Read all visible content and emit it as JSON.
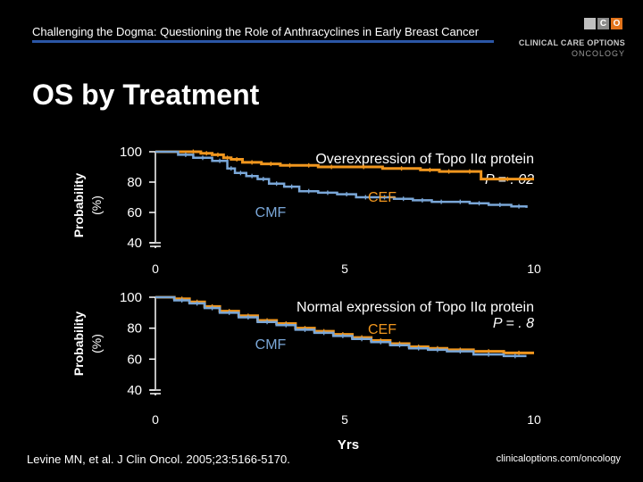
{
  "header": {
    "title": "Challenging the Dogma: Questioning the Role of Anthracyclines in Early Breast Cancer"
  },
  "logo": {
    "letters": [
      "",
      "C",
      "O"
    ],
    "line1": "CLINICAL CARE OPTIONS",
    "line2": "ONCOLOGY"
  },
  "slide": {
    "title": "OS by Treatment"
  },
  "footer": {
    "citation": "Levine MN, et al. J Clin Oncol. 2005;23:5166-5170.",
    "url": "clinicaloptions.com/oncology"
  },
  "colors": {
    "background": "#000000",
    "cef": "#f0961e",
    "cmf": "#7aa7d8",
    "rule": "#2b56a6"
  },
  "chart_data": [
    {
      "type": "line",
      "title": "Overexpression of Topo IIα protein",
      "pvalue": "P = . 02",
      "xlabel": "",
      "ylabel_line1": "Probability",
      "ylabel_line2": "(%)",
      "xlim": [
        0,
        10
      ],
      "ylim": [
        40,
        100
      ],
      "axis_break": true,
      "xticks": [
        "0",
        "5",
        "10"
      ],
      "yticks": [
        "100",
        "80",
        "60",
        "40"
      ],
      "series": [
        {
          "name": "CEF",
          "color": "#f0961e",
          "style": "step",
          "x": [
            0,
            0.8,
            1.2,
            1.5,
            1.8,
            2.0,
            2.3,
            2.8,
            3.3,
            3.8,
            4.3,
            5.0,
            6.0,
            7.0,
            7.5,
            8.0,
            8.6,
            10.0
          ],
          "y": [
            100,
            100,
            99,
            98,
            96,
            95,
            93,
            92,
            91,
            91,
            90,
            90,
            89,
            88,
            87,
            87,
            82,
            82
          ]
        },
        {
          "name": "CMF",
          "color": "#7aa7d8",
          "style": "step",
          "x": [
            0,
            0.6,
            1.0,
            1.5,
            1.9,
            2.1,
            2.4,
            2.7,
            3.0,
            3.4,
            3.8,
            4.3,
            4.8,
            5.3,
            5.8,
            6.3,
            6.8,
            7.3,
            7.8,
            8.3,
            8.8,
            9.4,
            9.8
          ],
          "y": [
            100,
            98,
            96,
            94,
            89,
            86,
            84,
            82,
            79,
            77,
            74,
            73,
            72,
            70,
            70,
            69,
            68,
            67,
            67,
            66,
            65,
            64,
            63
          ]
        }
      ]
    },
    {
      "type": "line",
      "title": "Normal expression of Topo IIα protein",
      "pvalue": "P = . 8",
      "xlabel": "Yrs",
      "ylabel_line1": "Probability",
      "ylabel_line2": "(%)",
      "xlim": [
        0,
        10
      ],
      "ylim": [
        40,
        100
      ],
      "axis_break": true,
      "xticks": [
        "0",
        "5",
        "10"
      ],
      "yticks": [
        "100",
        "80",
        "60",
        "40"
      ],
      "series": [
        {
          "name": "CEF",
          "color": "#f0961e",
          "style": "step",
          "x": [
            0,
            0.5,
            0.9,
            1.3,
            1.7,
            2.2,
            2.7,
            3.2,
            3.7,
            4.2,
            4.7,
            5.2,
            5.7,
            6.2,
            6.7,
            7.2,
            7.7,
            8.4,
            9.2,
            10.0
          ],
          "y": [
            100,
            99,
            97,
            94,
            91,
            88,
            85,
            83,
            80,
            78,
            76,
            74,
            72,
            70,
            68,
            67,
            66,
            65,
            64,
            64
          ]
        },
        {
          "name": "CMF",
          "color": "#7aa7d8",
          "style": "step",
          "x": [
            0,
            0.5,
            0.9,
            1.3,
            1.7,
            2.2,
            2.7,
            3.2,
            3.7,
            4.2,
            4.7,
            5.2,
            5.7,
            6.2,
            6.7,
            7.2,
            7.7,
            8.4,
            9.2,
            9.8
          ],
          "y": [
            100,
            98,
            96,
            93,
            90,
            87,
            84,
            82,
            79,
            77,
            75,
            73,
            71,
            69,
            67,
            66,
            65,
            63,
            62,
            62
          ]
        }
      ]
    }
  ],
  "chart_labels": [
    {
      "cef": "CEF",
      "cmf": "CMF"
    },
    {
      "cef": "CEF",
      "cmf": "CMF"
    }
  ]
}
